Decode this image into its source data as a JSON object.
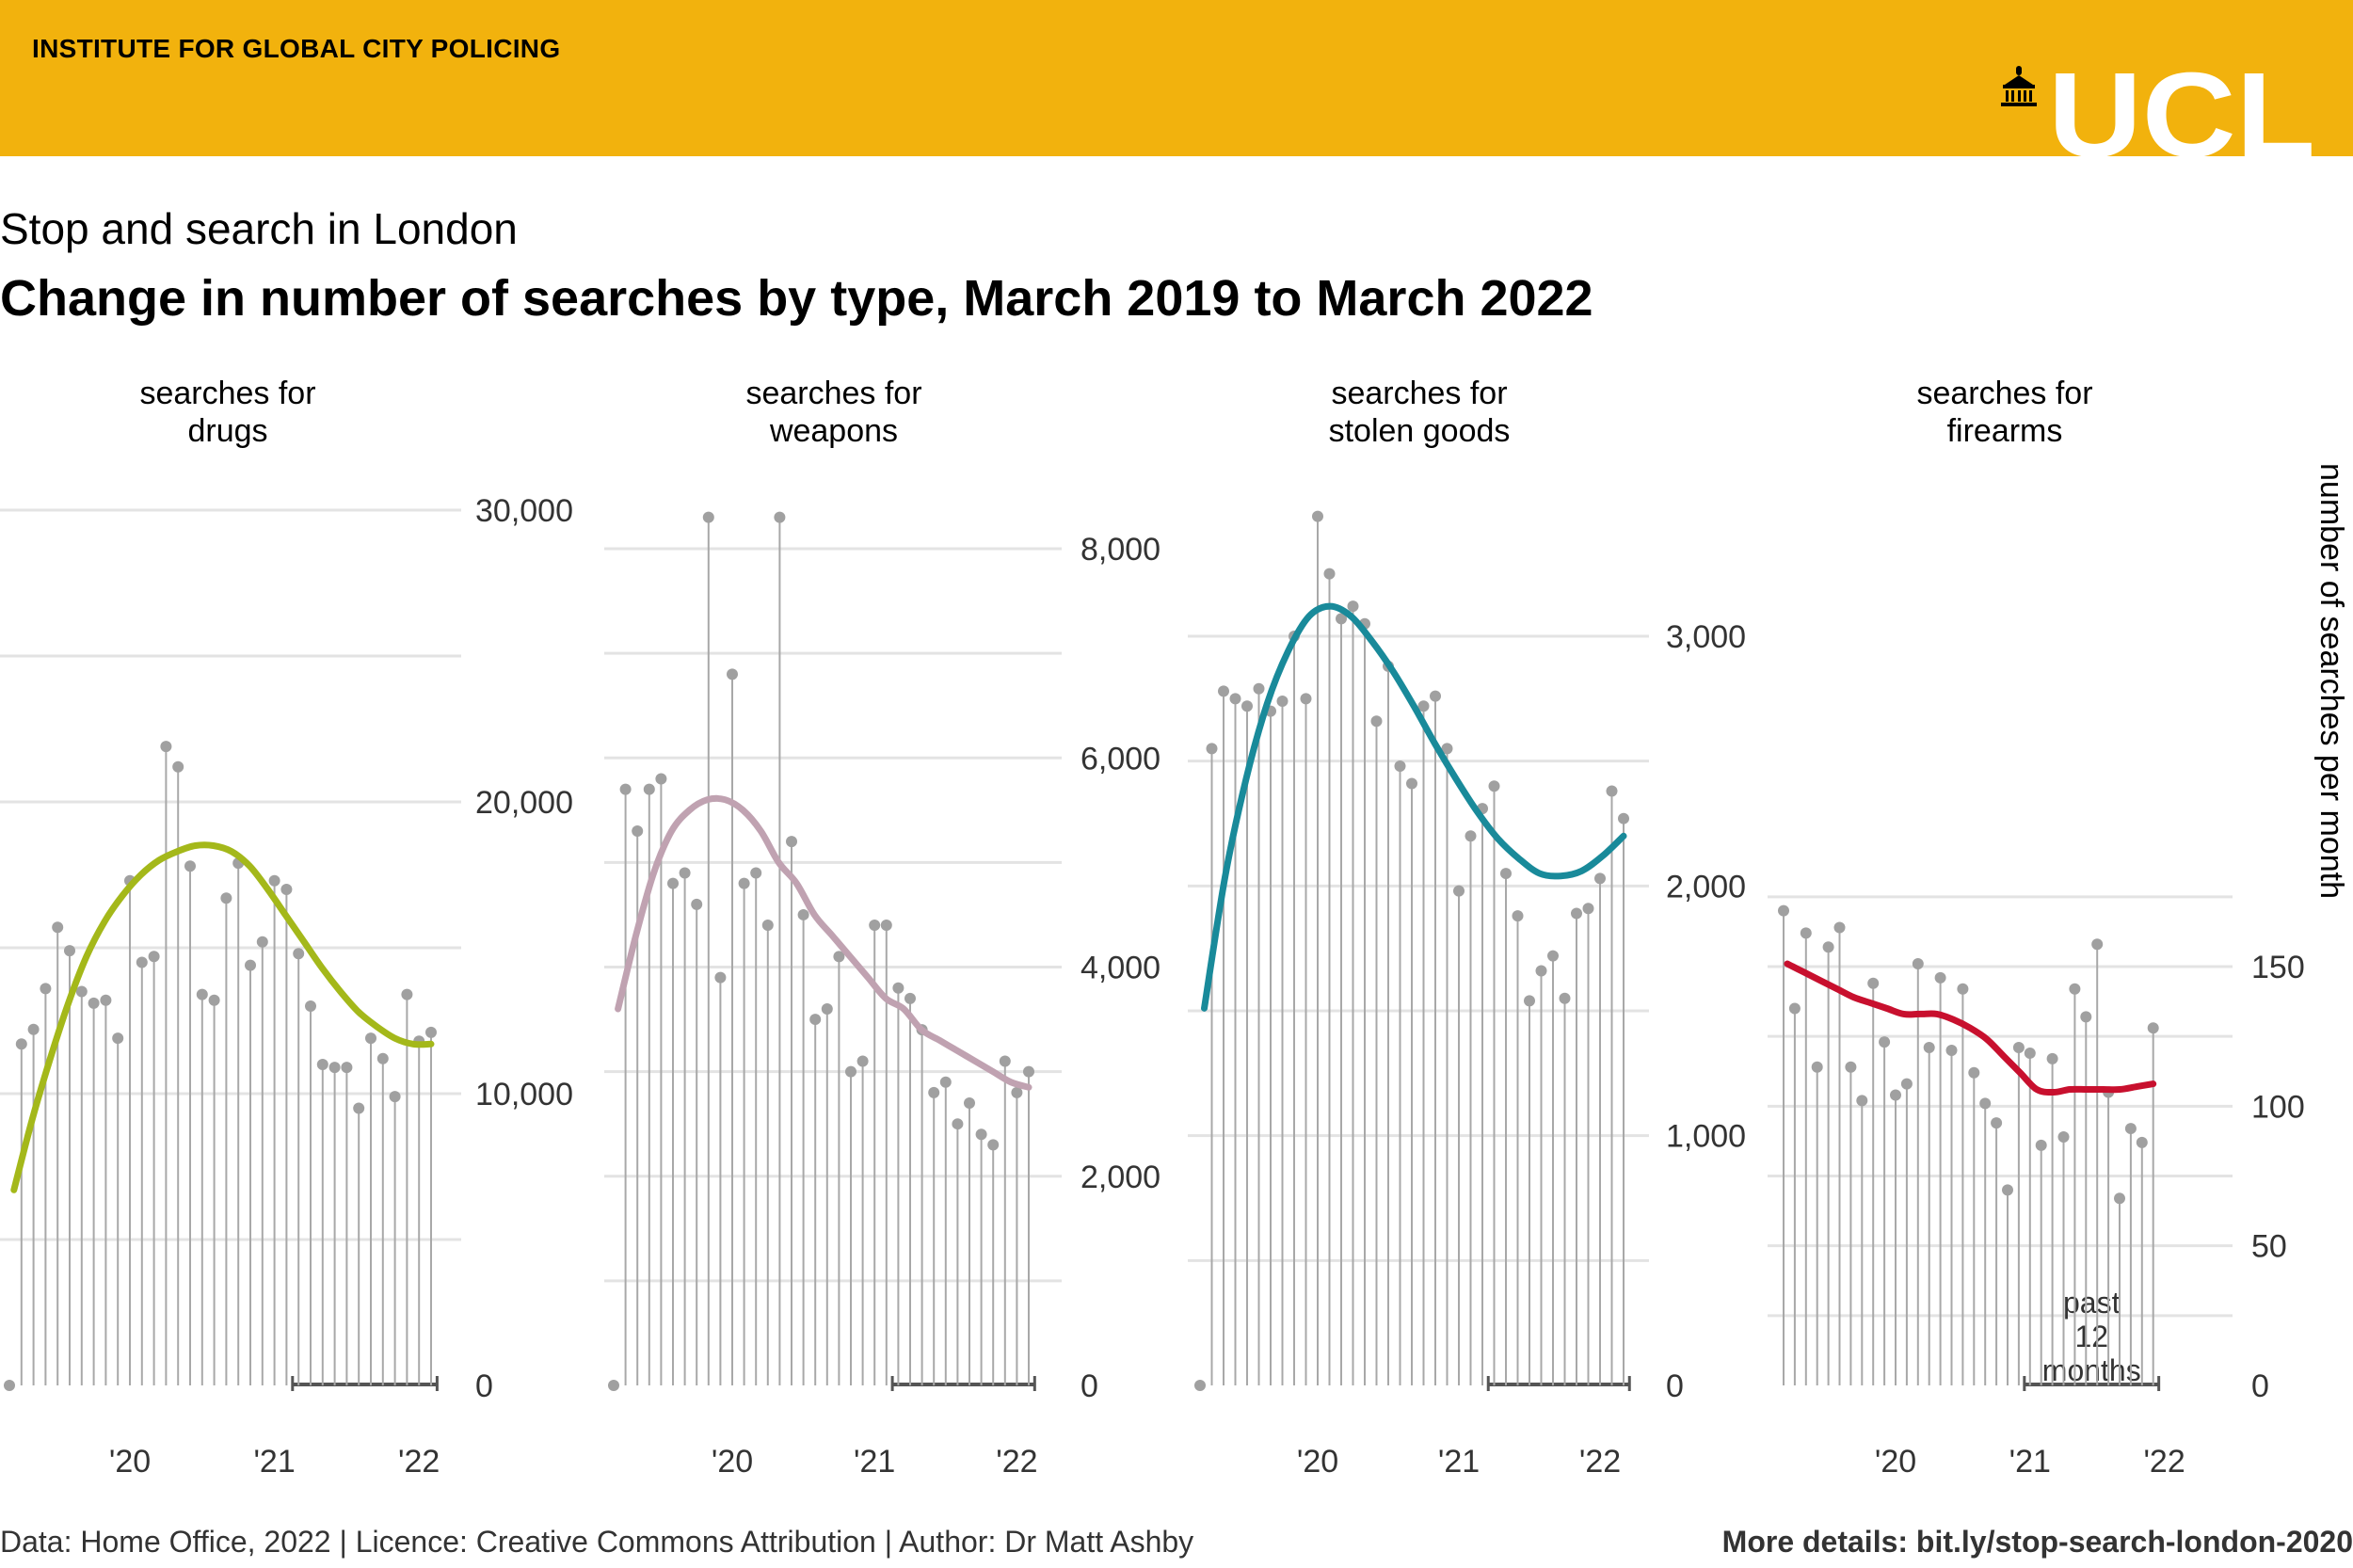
{
  "header": {
    "institute": "INSTITUTE FOR GLOBAL CITY POLICING",
    "logo_text": "UCL",
    "banner_color": "#F2B20D"
  },
  "subtitle": "Stop and search in London",
  "title": "Change in number of searches by type, March 2019 to March 2022",
  "footer": {
    "left": "Data: Home Office, 2022 | Licence: Creative Commons Attribution | Author: Dr Matt Ashby",
    "right": "More details: bit.ly/stop-search-london-2020"
  },
  "chart_data": [
    {
      "type": "line",
      "panel_title": [
        "searches for",
        "drugs"
      ],
      "color": "#A4B81A",
      "ylim": [
        0,
        30000
      ],
      "yticks": [
        0,
        10000,
        20000,
        30000
      ],
      "ytick_labels": [
        "0",
        "10,000",
        "20,000",
        "30,000"
      ],
      "xticks": [
        "'20",
        "'21",
        "'22"
      ],
      "start_month": "2019-03",
      "values": [
        0,
        11700,
        12200,
        13600,
        15700,
        14900,
        13500,
        13100,
        13200,
        11900,
        17300,
        14500,
        14700,
        21900,
        21200,
        17800,
        13400,
        13200,
        16700,
        17900,
        14400,
        15200,
        17300,
        17000,
        14800,
        13000,
        11000,
        10900,
        10900,
        9500,
        11900,
        11200,
        9900,
        13400,
        11800,
        12100
      ],
      "trend": [
        6700,
        9100,
        11200,
        13100,
        14700,
        15900,
        16800,
        17500,
        18000,
        18300,
        18500,
        18500,
        18300,
        17800,
        17000,
        16100,
        15200,
        14300,
        13500,
        12800,
        12300,
        11900,
        11700,
        11700
      ],
      "annotation": ""
    },
    {
      "type": "line",
      "panel_title": [
        "searches for",
        "weapons"
      ],
      "color": "#C0A2B1",
      "ylim": [
        0,
        8000
      ],
      "yticks": [
        0,
        2000,
        4000,
        6000,
        8000
      ],
      "ytick_labels": [
        "0",
        "2,000",
        "4,000",
        "6,000",
        "8,000"
      ],
      "xticks": [
        "'20",
        "'21",
        "'22"
      ],
      "start_month": "2019-03",
      "values": [
        0,
        5700,
        5300,
        5700,
        5800,
        4800,
        4900,
        4600,
        8300,
        3900,
        6800,
        4800,
        4900,
        4400,
        8300,
        5200,
        4500,
        3500,
        3600,
        4100,
        3000,
        3100,
        4400,
        4400,
        3800,
        3700,
        3400,
        2800,
        2900,
        2500,
        2700,
        2400,
        2300,
        3100,
        2800,
        3000
      ],
      "trend": [
        3600,
        4300,
        4900,
        5300,
        5500,
        5600,
        5600,
        5500,
        5300,
        5000,
        4800,
        4500,
        4300,
        4100,
        3900,
        3700,
        3600,
        3400,
        3300,
        3200,
        3100,
        3000,
        2900,
        2850
      ],
      "annotation": ""
    },
    {
      "type": "line",
      "panel_title": [
        "searches for",
        "stolen goods"
      ],
      "color": "#198A9A",
      "ylim": [
        0,
        3000
      ],
      "yticks": [
        0,
        1000,
        2000,
        3000
      ],
      "ytick_labels": [
        "0",
        "1,000",
        "2,000",
        "3,000"
      ],
      "xticks": [
        "'20",
        "'21",
        "'22"
      ],
      "start_month": "2019-03",
      "values": [
        0,
        2550,
        2780,
        2750,
        2720,
        2790,
        2700,
        2740,
        3000,
        2750,
        3480,
        3250,
        3070,
        3120,
        3050,
        2660,
        2880,
        2480,
        2410,
        2720,
        2760,
        2550,
        1980,
        2200,
        2310,
        2400,
        2050,
        1880,
        1540,
        1660,
        1720,
        1550,
        1890,
        1910,
        2030,
        2380,
        2270
      ],
      "trend": [
        1510,
        2040,
        2430,
        2730,
        2940,
        3080,
        3120,
        3080,
        2980,
        2860,
        2720,
        2570,
        2430,
        2300,
        2190,
        2110,
        2050,
        2040,
        2060,
        2120,
        2200
      ],
      "annotation": ""
    },
    {
      "type": "line",
      "panel_title": [
        "searches for",
        "firearms"
      ],
      "color": "#C8102E",
      "ylim": [
        0,
        175
      ],
      "yticks": [
        0,
        50,
        100,
        150
      ],
      "ytick_labels": [
        "0",
        "50",
        "100",
        "150"
      ],
      "xticks": [
        "'20",
        "'21",
        "'22"
      ],
      "ylabel": "number of searches per month",
      "start_month": "2019-03",
      "values": [
        170,
        135,
        162,
        114,
        157,
        164,
        114,
        102,
        144,
        123,
        104,
        108,
        151,
        121,
        146,
        120,
        142,
        112,
        101,
        94,
        70,
        121,
        119,
        86,
        117,
        89,
        142,
        132,
        158,
        105,
        67,
        92,
        87,
        128
      ],
      "trend": [
        151,
        148,
        145,
        142,
        139,
        137,
        135,
        133,
        133,
        133,
        131,
        128,
        124,
        118,
        112,
        106,
        105,
        106,
        106,
        106,
        106,
        107,
        108
      ],
      "annotation": "past\n12\nmonths"
    }
  ]
}
